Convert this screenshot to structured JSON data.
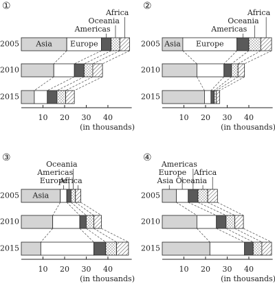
{
  "chart_data": [
    {
      "type": "bar",
      "orientation": "horizontal",
      "stacked": true,
      "panel_label": "①",
      "categories": [
        "2005",
        "2010",
        "2015"
      ],
      "series": [
        {
          "name": "Asia",
          "color": "#d4d4d4",
          "values": [
            21,
            15,
            6
          ]
        },
        {
          "name": "Europe",
          "color": "#ffffff",
          "values": [
            16,
            9.5,
            6
          ]
        },
        {
          "name": "Americas",
          "color": "#5a5a5a",
          "values": [
            4.5,
            4.5,
            4.5
          ]
        },
        {
          "name": "Oceania",
          "color": "#ffffff",
          "pattern": "dots",
          "values": [
            4,
            4,
            4
          ]
        },
        {
          "name": "Africa",
          "color": "#ffffff",
          "pattern": "hatch",
          "values": [
            4.5,
            4.5,
            4
          ]
        }
      ],
      "xlim": [
        0,
        51
      ],
      "xticks": [
        10,
        20,
        30,
        40
      ],
      "xlabel": "(in thousands)"
    },
    {
      "type": "bar",
      "orientation": "horizontal",
      "stacked": true,
      "panel_label": "②",
      "categories": [
        "2005",
        "2010",
        "2015"
      ],
      "series": [
        {
          "name": "Asia",
          "color": "#d4d4d4",
          "values": [
            9.5,
            16,
            19.5
          ]
        },
        {
          "name": "Europe",
          "color": "#ffffff",
          "values": [
            25,
            12.5,
            3
          ]
        },
        {
          "name": "Americas",
          "color": "#5a5a5a",
          "values": [
            5.5,
            3.5,
            1.5
          ]
        },
        {
          "name": "Oceania",
          "color": "#ffffff",
          "pattern": "dots",
          "values": [
            5.5,
            3,
            1
          ]
        },
        {
          "name": "Africa",
          "color": "#ffffff",
          "pattern": "hatch",
          "values": [
            5,
            3,
            1.5
          ]
        }
      ],
      "xlim": [
        0,
        51
      ],
      "xticks": [
        10,
        20,
        30,
        40
      ],
      "xlabel": "(in thousands)"
    },
    {
      "type": "bar",
      "orientation": "horizontal",
      "stacked": true,
      "panel_label": "③",
      "categories": [
        "2005",
        "2010",
        "2015"
      ],
      "series": [
        {
          "name": "Asia",
          "color": "#d4d4d4",
          "values": [
            18,
            14.5,
            9
          ]
        },
        {
          "name": "Europe",
          "color": "#ffffff",
          "values": [
            3,
            12.5,
            24.5
          ]
        },
        {
          "name": "Americas",
          "color": "#5a5a5a",
          "values": [
            2,
            3,
            5.5
          ]
        },
        {
          "name": "Oceania",
          "color": "#ffffff",
          "pattern": "dots",
          "values": [
            2,
            3.5,
            5
          ]
        },
        {
          "name": "Africa",
          "color": "#ffffff",
          "pattern": "hatch",
          "values": [
            2.5,
            3.5,
            5.5
          ]
        }
      ],
      "xlim": [
        0,
        51
      ],
      "xticks": [
        10,
        20,
        30,
        40
      ],
      "xlabel": "(in thousands)"
    },
    {
      "type": "bar",
      "orientation": "horizontal",
      "stacked": true,
      "panel_label": "④",
      "categories": [
        "2005",
        "2010",
        "2015"
      ],
      "series": [
        {
          "name": "Asia",
          "color": "#d4d4d4",
          "values": [
            6.5,
            16,
            22
          ]
        },
        {
          "name": "Europe",
          "color": "#ffffff",
          "values": [
            5.5,
            9,
            16
          ]
        },
        {
          "name": "Americas",
          "color": "#5a5a5a",
          "values": [
            4.5,
            4.5,
            4
          ]
        },
        {
          "name": "Oceania",
          "color": "#ffffff",
          "pattern": "dots",
          "values": [
            4.5,
            4,
            4
          ]
        },
        {
          "name": "Africa",
          "color": "#ffffff",
          "pattern": "hatch",
          "values": [
            4.5,
            4,
            4.5
          ]
        }
      ],
      "xlim": [
        0,
        51
      ],
      "xticks": [
        10,
        20,
        30,
        40
      ],
      "xlabel": "(in thousands)"
    }
  ]
}
